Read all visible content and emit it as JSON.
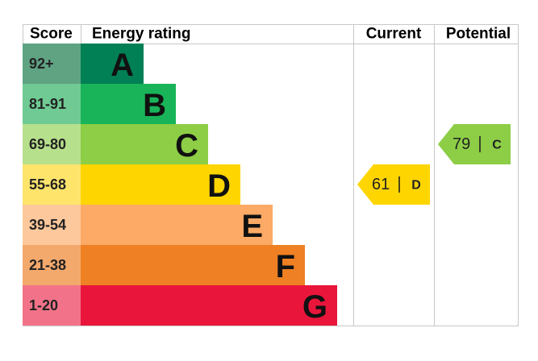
{
  "header": {
    "score": "Score",
    "energy_rating": "Energy rating",
    "current": "Current",
    "potential": "Potential"
  },
  "rows": [
    {
      "score": "92+",
      "letter": "A",
      "color": "#008054",
      "score_color": "#5fa383"
    },
    {
      "score": "81-91",
      "letter": "B",
      "color": "#19b459",
      "score_color": "#6fcb93"
    },
    {
      "score": "69-80",
      "letter": "C",
      "color": "#8dce46",
      "score_color": "#b7e08c"
    },
    {
      "score": "55-68",
      "letter": "D",
      "color": "#ffd500",
      "score_color": "#ffe46c"
    },
    {
      "score": "39-54",
      "letter": "E",
      "color": "#fcaa65",
      "score_color": "#fdc89c"
    },
    {
      "score": "21-38",
      "letter": "F",
      "color": "#ef8023",
      "score_color": "#f4a96c"
    },
    {
      "score": "1-20",
      "letter": "G",
      "color": "#e9153b",
      "score_color": "#f27389"
    }
  ],
  "current": {
    "value": 61,
    "band": "D"
  },
  "potential": {
    "value": 79,
    "band": "C"
  }
}
